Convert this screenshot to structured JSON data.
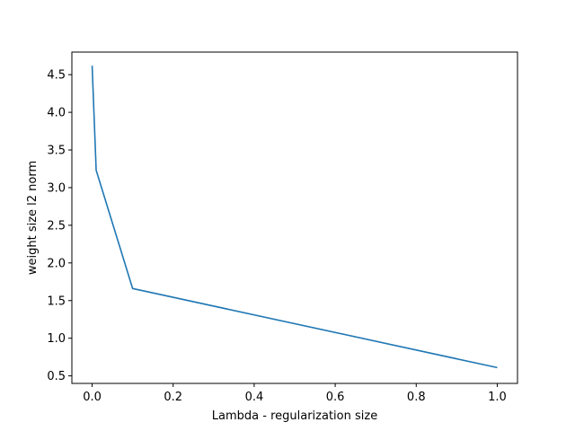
{
  "chart_data": {
    "type": "line",
    "title": "",
    "xlabel": "Lambda - regularization size",
    "ylabel": "weight size l2 norm",
    "xlim": [
      -0.05,
      1.05
    ],
    "ylim": [
      0.4,
      4.8
    ],
    "xticks": [
      0.0,
      0.2,
      0.4,
      0.6,
      0.8,
      1.0
    ],
    "xtick_labels": [
      "0.0",
      "0.2",
      "0.4",
      "0.6",
      "0.8",
      "1.0"
    ],
    "yticks": [
      0.5,
      1.0,
      1.5,
      2.0,
      2.5,
      3.0,
      3.5,
      4.0,
      4.5
    ],
    "ytick_labels": [
      "0.5",
      "1.0",
      "1.5",
      "2.0",
      "2.5",
      "3.0",
      "3.5",
      "4.0",
      "4.5"
    ],
    "grid": false,
    "series": [
      {
        "color": "#1f77b4",
        "x": [
          0.0,
          0.01,
          0.1,
          1.0
        ],
        "y": [
          4.62,
          3.23,
          1.66,
          0.61
        ]
      }
    ]
  }
}
